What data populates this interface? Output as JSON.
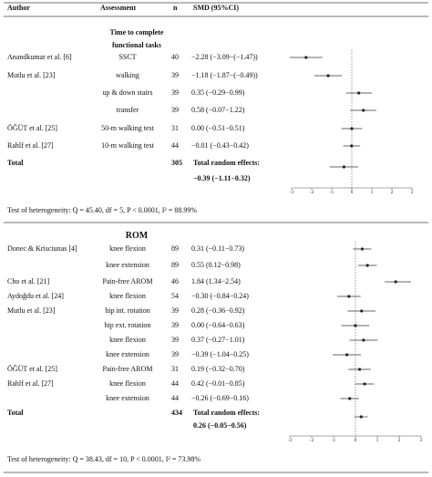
{
  "header": {
    "author": "Author",
    "assessment": "Assessment",
    "n": "n",
    "smd": "SMD (95%CI)"
  },
  "panels": [
    {
      "title": "Time to complete functional tasks",
      "rows": [
        {
          "author": "Anandkumar et al. [6]",
          "assessment": "SSCT",
          "n": 40,
          "smd_label": "−2.28 (−3.09−(−1.47))",
          "estimate": -2.28,
          "lower": -3.09,
          "upper": -1.47
        },
        {
          "author": "Mutlu et al. [23]",
          "assessment": "walking",
          "n": 39,
          "smd_label": "−1.18 (−1.87−(−0.49))",
          "estimate": -1.18,
          "lower": -1.87,
          "upper": -0.49
        },
        {
          "author": null,
          "assessment": "up & down stairs",
          "n": 39,
          "smd_label": "0.35 (−0.29−0.99)",
          "estimate": 0.35,
          "lower": -0.29,
          "upper": 0.99
        },
        {
          "author": null,
          "assessment": "transfer",
          "n": 39,
          "smd_label": "0.58 (−0.07−1.22)",
          "estimate": 0.58,
          "lower": -0.07,
          "upper": 1.22
        },
        {
          "author": "ÖĞÜT et al. [25]",
          "assessment": "50-m walking test",
          "n": 31,
          "smd_label": "0.00 (−0.51−0.51)",
          "estimate": 0.0,
          "lower": -0.51,
          "upper": 0.51
        },
        {
          "author": "Rahlf et al. [27]",
          "assessment": "10-m walking test",
          "n": 44,
          "smd_label": "−0.01 (−0.43−0.42)",
          "estimate": -0.01,
          "lower": -0.43,
          "upper": 0.42
        }
      ],
      "total": {
        "author": "Total",
        "n": 305,
        "text": "Total random effects:",
        "smd_label": "−0.39 (−1.11−0.32)",
        "estimate": -0.39,
        "lower": -1.11,
        "upper": 0.32
      },
      "xlim": [
        -3,
        3
      ],
      "xticks": [
        -3,
        -2,
        -1,
        0,
        1,
        2,
        3
      ],
      "heterogeneity": "Test of heterogeneity: Q = 45.40, df = 5, P < 0.0001, I² = 88.99%"
    },
    {
      "title": "ROM",
      "rows": [
        {
          "author": "Donec & Krisciunas [4]",
          "assessment": "knee flexion",
          "n": 89,
          "smd_label": "0.31 (−0.11−0.73)",
          "estimate": 0.31,
          "lower": -0.11,
          "upper": 0.73
        },
        {
          "author": null,
          "assessment": "knee extension",
          "n": 89,
          "smd_label": "0.55 (0.12−0.98)",
          "estimate": 0.55,
          "lower": 0.12,
          "upper": 0.98
        },
        {
          "author": "Cho et al. [21]",
          "assessment": "Pain-free AROM",
          "n": 46,
          "smd_label": "1.84 (1.34−2.54)",
          "estimate": 1.84,
          "lower": 1.34,
          "upper": 2.54
        },
        {
          "author": "Aydoğdu et al. [24]",
          "assessment": "knee flexion",
          "n": 54,
          "smd_label": "−0.30 (−0.84−0.24)",
          "estimate": -0.3,
          "lower": -0.84,
          "upper": 0.24
        },
        {
          "author": "Mutlu et al. [23]",
          "assessment": "hip int. rotation",
          "n": 39,
          "smd_label": "0.28 (−0.36−0.92)",
          "estimate": 0.28,
          "lower": -0.36,
          "upper": 0.92
        },
        {
          "author": null,
          "assessment": "hip ext. rotation",
          "n": 39,
          "smd_label": "0.00 (−0.64−0.63)",
          "estimate": 0.0,
          "lower": -0.64,
          "upper": 0.63
        },
        {
          "author": null,
          "assessment": "knee flexion",
          "n": 39,
          "smd_label": "0.37 (−0.27−1.01)",
          "estimate": 0.37,
          "lower": -0.27,
          "upper": 1.01
        },
        {
          "author": null,
          "assessment": "knee extension",
          "n": 39,
          "smd_label": "−0.39 (−1.04−0.25)",
          "estimate": -0.39,
          "lower": -1.04,
          "upper": 0.25
        },
        {
          "author": "ÖĞÜT et al. [25]",
          "assessment": "Pain-free AROM",
          "n": 31,
          "smd_label": "0.19 (−0.32−0.70)",
          "estimate": 0.19,
          "lower": -0.32,
          "upper": 0.7
        },
        {
          "author": "Rahlf et al. [27]",
          "assessment": "knee flexion",
          "n": 44,
          "smd_label": "0.42 (−0.01−0.85)",
          "estimate": 0.42,
          "lower": -0.01,
          "upper": 0.85
        },
        {
          "author": null,
          "assessment": "knee extension",
          "n": 44,
          "smd_label": "−0.26 (−0.69−0.16)",
          "estimate": -0.26,
          "lower": -0.69,
          "upper": 0.16
        }
      ],
      "total": {
        "author": "Total",
        "n": 434,
        "text": "Total random effects:",
        "smd_label": "0.26 (−0.05−0.56)",
        "estimate": 0.26,
        "lower": -0.05,
        "upper": 0.56
      },
      "xlim": [
        -3,
        3
      ],
      "xticks": [
        -3,
        -2,
        -1,
        0,
        1,
        2,
        3
      ],
      "heterogeneity": "Test of heterogeneity: Q = 38.43, df = 10, P < 0.0001, I² = 73.98%"
    }
  ]
}
